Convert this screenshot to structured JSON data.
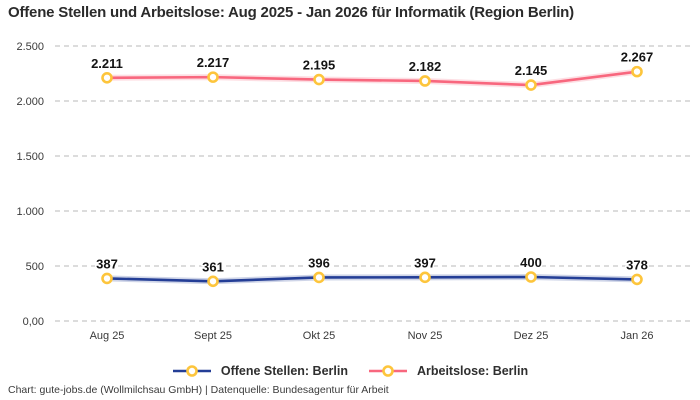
{
  "title": "Offene Stellen und Arbeitslose: Aug 2025 - Jan 2026 für Informatik (Region Berlin)",
  "footer": "Chart: gute-jobs.de (Wollmilchsau GmbH) | Datenquelle: Bundesagentur für Arbeit",
  "colors": {
    "open_positions_line": "#243e96",
    "unemployed_line": "#f8677e",
    "marker_ring": "#fdc53c",
    "marker_fill": "#ffffff",
    "grid": "#c7c7c7",
    "background": "#ffffff",
    "title_text": "#2b2b2b",
    "axis_text": "#3a3a3a",
    "data_label_text": "#141414",
    "footer_text": "#3b3b3b"
  },
  "legend": {
    "items": [
      {
        "label": "Offene Stellen: Berlin",
        "color": "#243e96"
      },
      {
        "label": "Arbeitslose: Berlin",
        "color": "#f8677e"
      }
    ]
  },
  "chart_data": {
    "type": "line",
    "title": "Offene Stellen und Arbeitslose: Aug 2025 - Jan 2026 für Informatik (Region Berlin)",
    "xlabel": "",
    "ylabel": "",
    "categories": [
      "Aug 25",
      "Sept 25",
      "Okt 25",
      "Nov 25",
      "Dez 25",
      "Jan 26"
    ],
    "series": [
      {
        "name": "Offene Stellen: Berlin",
        "color": "#243e96",
        "values": [
          387,
          361,
          396,
          397,
          400,
          378
        ],
        "labels": [
          "387",
          "361",
          "396",
          "397",
          "400",
          "378"
        ]
      },
      {
        "name": "Arbeitslose: Berlin",
        "color": "#f8677e",
        "values": [
          2211,
          2217,
          2195,
          2182,
          2145,
          2267
        ],
        "labels": [
          "2.211",
          "2.217",
          "2.195",
          "2.182",
          "2.145",
          "2.267"
        ]
      }
    ],
    "ylim": [
      0,
      2500
    ],
    "yticks": [
      {
        "value": 0,
        "label": "0,00"
      },
      {
        "value": 500,
        "label": "500"
      },
      {
        "value": 1000,
        "label": "1.000"
      },
      {
        "value": 1500,
        "label": "1.500"
      },
      {
        "value": 2000,
        "label": "2.000"
      },
      {
        "value": 2500,
        "label": "2.500"
      }
    ],
    "grid": "dashed-horizontal",
    "legend_position": "bottom",
    "marker": "ring"
  }
}
